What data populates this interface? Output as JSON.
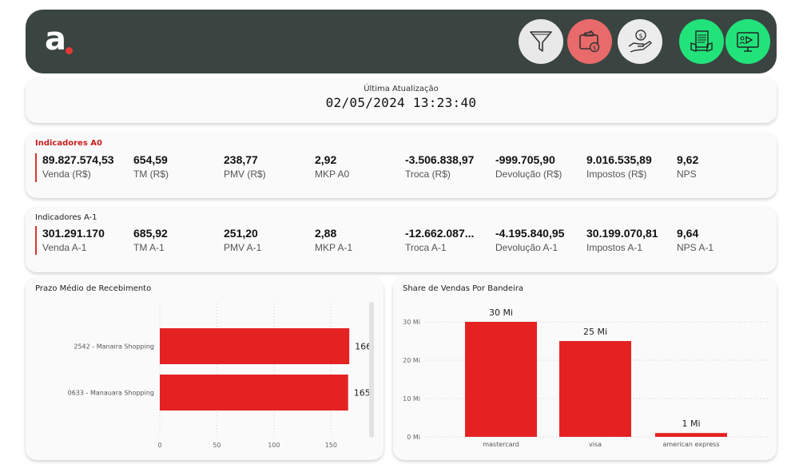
{
  "header": {
    "logo_letter": "a.",
    "buttons": [
      {
        "name": "filter-icon"
      },
      {
        "name": "wallet-icon"
      },
      {
        "name": "money-hand-icon"
      },
      {
        "name": "report-icon"
      },
      {
        "name": "video-presentation-icon"
      }
    ],
    "colors": {
      "bg": "#3a4541",
      "accent": "#e53935",
      "green": "#22e37a",
      "red_btn": "#e86a6a"
    }
  },
  "update": {
    "label": "Última Atualização",
    "value": "02/05/2024 13:23:40"
  },
  "indicators_a0": {
    "title": "Indicadores A0",
    "kpis": [
      {
        "value": "89.827.574,53",
        "label": "Venda (R$)"
      },
      {
        "value": "654,59",
        "label": "TM (R$)"
      },
      {
        "value": "238,77",
        "label": "PMV (R$)"
      },
      {
        "value": "2,92",
        "label": "MKP A0"
      },
      {
        "value": "-3.506.838,97",
        "label": "Troca (R$)"
      },
      {
        "value": "-999.705,90",
        "label": "Devolução (R$)"
      },
      {
        "value": "9.016.535,89",
        "label": "Impostos (R$)"
      },
      {
        "value": "9,62",
        "label": "NPS"
      }
    ]
  },
  "indicators_a1": {
    "title": "Indicadores A-1",
    "kpis": [
      {
        "value": "301.291.170",
        "label": "Venda A-1"
      },
      {
        "value": "685,92",
        "label": "TM A-1"
      },
      {
        "value": "251,20",
        "label": "PMV A-1"
      },
      {
        "value": "2,88",
        "label": "MKP A-1"
      },
      {
        "value": "-12.662.087...",
        "label": "Troca A-1"
      },
      {
        "value": "-4.195.840,95",
        "label": "Devolução A-1"
      },
      {
        "value": "30.199.070,81",
        "label": "Impostos A-1"
      },
      {
        "value": "9,64",
        "label": "NPS A-1"
      }
    ]
  },
  "chart_data": [
    {
      "type": "bar",
      "orientation": "horizontal",
      "title": "Prazo Médio de Recebimento",
      "categories": [
        "2542 - Manaira Shopping",
        "0633 - Manauara Shopping"
      ],
      "values": [
        166,
        165
      ],
      "value_labels": [
        "166",
        "165"
      ],
      "xticks": [
        "0",
        "50",
        "100",
        "150"
      ],
      "xlim": [
        0,
        175
      ],
      "color": "#e52222"
    },
    {
      "type": "bar",
      "title": "Share de Vendas Por Bandeira",
      "categories": [
        "mastercard",
        "visa",
        "american express"
      ],
      "values": [
        30,
        25,
        1
      ],
      "value_labels": [
        "30 Mi",
        "25 Mi",
        "1 Mi"
      ],
      "yticks": [
        "0 Mi",
        "10 Mi",
        "20 Mi",
        "30 Mi"
      ],
      "ylim": [
        0,
        30
      ],
      "grid": true,
      "color": "#e52222"
    }
  ]
}
